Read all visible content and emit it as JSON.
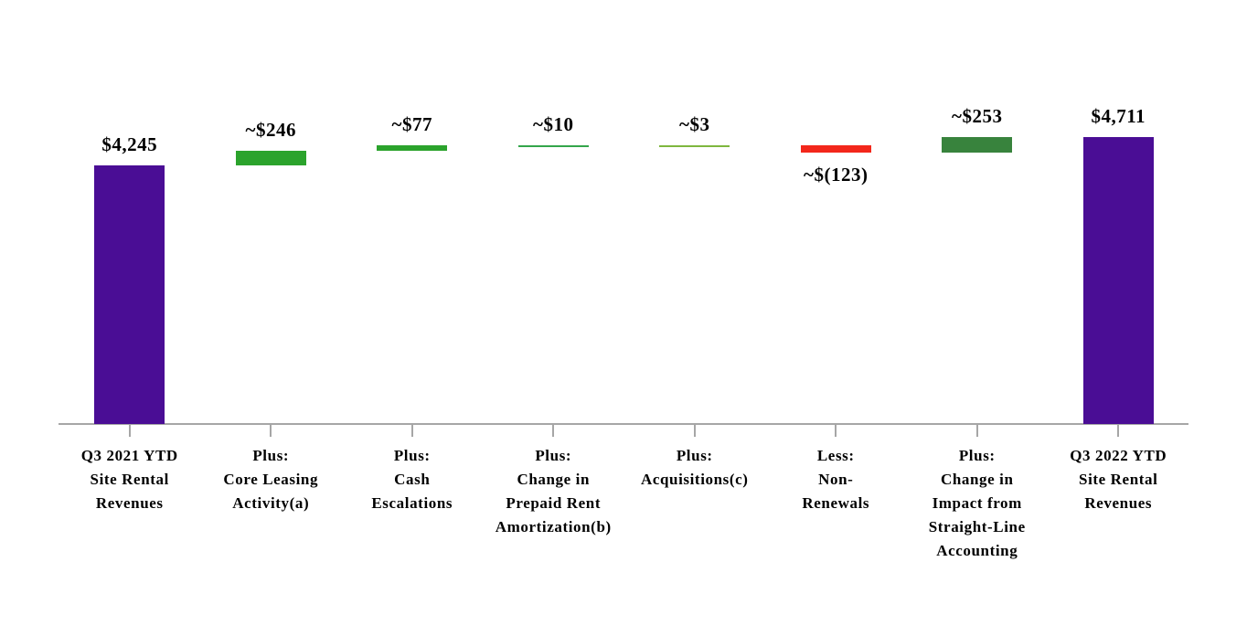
{
  "chart_data": {
    "type": "bar",
    "subtype": "waterfall",
    "title": "",
    "xlabel": "",
    "ylabel": "",
    "ylim": [
      0,
      4711
    ],
    "grid": false,
    "legend": false,
    "axis_color": "#A6A6A6",
    "text_color": "#000000",
    "background_color": "#FFFFFF",
    "categories": [
      "Q3 2021 YTD\nSite Rental\nRevenues",
      "Plus:\nCore Leasing\nActivity(a)",
      "Plus:\nCash\nEscalations",
      "Plus:\nChange in\nPrepaid Rent\nAmortization(b)",
      "Plus:\nAcquisitions(c)",
      "Less:\nNon-\nRenewals",
      "Plus:\nChange in\nImpact from\nStraight-Line\nAccounting",
      "Q3 2022 YTD\nSite Rental\nRevenues"
    ],
    "bars": [
      {
        "name": "q3-2021-ytd-site-rental-revenues",
        "label": "$4,245",
        "value": 4245,
        "kind": "total",
        "color": "#4A0D95",
        "label_position": "above"
      },
      {
        "name": "core-leasing-activity",
        "label": "~$246",
        "value": 246,
        "kind": "increase",
        "color": "#2BA32C",
        "label_position": "above"
      },
      {
        "name": "cash-escalations",
        "label": "~$77",
        "value": 77,
        "kind": "increase",
        "color": "#2BA32C",
        "label_position": "above"
      },
      {
        "name": "change-in-prepaid-rent-amortization",
        "label": "~$10",
        "value": 10,
        "kind": "increase",
        "color": "#34A64B",
        "label_position": "above"
      },
      {
        "name": "acquisitions",
        "label": "~$3",
        "value": 3,
        "kind": "increase",
        "color": "#7EB73E",
        "label_position": "above"
      },
      {
        "name": "non-renewals",
        "label": "~$(123)",
        "value": -123,
        "kind": "decrease",
        "color": "#F3271B",
        "label_position": "below"
      },
      {
        "name": "change-in-impact-from-straight-line-accounting",
        "label": "~$253",
        "value": 253,
        "kind": "increase",
        "color": "#38833D",
        "label_position": "above"
      },
      {
        "name": "q3-2022-ytd-site-rental-revenues",
        "label": "$4,711",
        "value": 4711,
        "kind": "total",
        "color": "#4A0D95",
        "label_position": "above"
      }
    ]
  }
}
